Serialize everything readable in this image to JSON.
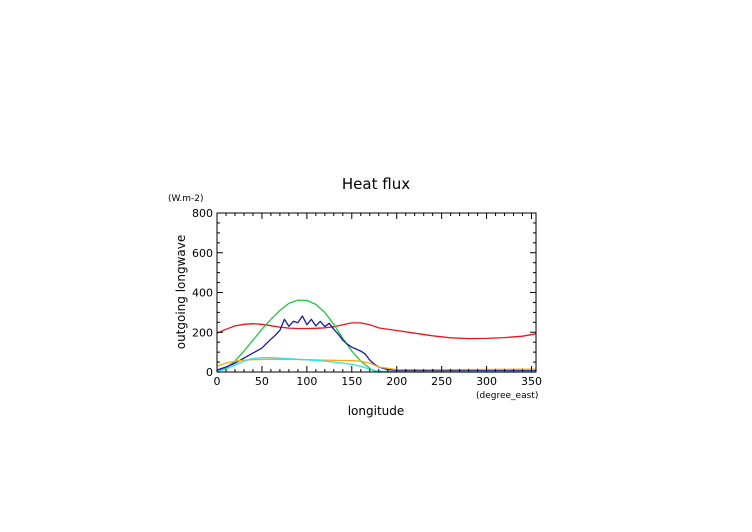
{
  "chart_data": {
    "type": "line",
    "title": "Heat flux",
    "ylabel": "outgoing longwave",
    "yunit": "(W.m-2)",
    "xlabel": "longitude",
    "xunit": "(degree_east)",
    "xlim": [
      0,
      355
    ],
    "ylim": [
      0,
      800
    ],
    "xticks": [
      0,
      50,
      100,
      150,
      200,
      250,
      300,
      350
    ],
    "yticks": [
      0,
      200,
      400,
      600,
      800
    ],
    "grid": false,
    "legend": "none",
    "series": [
      {
        "color": "#e8141e",
        "x": [
          0,
          10,
          20,
          30,
          40,
          50,
          60,
          70,
          80,
          90,
          100,
          110,
          120,
          130,
          140,
          150,
          160,
          170,
          180,
          200,
          220,
          240,
          260,
          280,
          300,
          320,
          340,
          355
        ],
        "y": [
          195,
          215,
          232,
          240,
          243,
          240,
          233,
          226,
          221,
          219,
          219,
          220,
          222,
          228,
          238,
          247,
          247,
          238,
          222,
          209,
          195,
          182,
          172,
          168,
          169,
          173,
          180,
          192
        ]
      },
      {
        "color": "#22c440",
        "x": [
          0,
          10,
          20,
          30,
          40,
          50,
          60,
          70,
          80,
          90,
          100,
          110,
          120,
          130,
          140,
          150,
          160,
          170,
          175,
          180,
          200,
          250,
          300,
          355
        ],
        "y": [
          5,
          20,
          55,
          105,
          160,
          215,
          265,
          310,
          345,
          362,
          360,
          340,
          300,
          240,
          170,
          105,
          55,
          18,
          5,
          0,
          0,
          0,
          0,
          0
        ]
      },
      {
        "color": "#1a1a9c",
        "x": [
          0,
          10,
          20,
          30,
          40,
          50,
          60,
          65,
          70,
          75,
          80,
          85,
          90,
          95,
          100,
          105,
          110,
          115,
          120,
          125,
          130,
          135,
          140,
          145,
          150,
          155,
          160,
          165,
          170,
          175,
          180,
          190,
          200,
          250,
          300,
          355
        ],
        "y": [
          10,
          25,
          45,
          70,
          95,
          120,
          165,
          185,
          210,
          265,
          230,
          255,
          248,
          282,
          238,
          265,
          232,
          255,
          228,
          245,
          215,
          190,
          160,
          140,
          125,
          115,
          105,
          90,
          60,
          40,
          25,
          12,
          8,
          6,
          6,
          6
        ]
      },
      {
        "color": "#f4a81c",
        "x": [
          0,
          10,
          20,
          30,
          40,
          50,
          60,
          70,
          80,
          90,
          100,
          110,
          120,
          130,
          140,
          150,
          160,
          170,
          180,
          200,
          250,
          300,
          355
        ],
        "y": [
          30,
          45,
          55,
          60,
          62,
          63,
          64,
          64,
          64,
          63,
          62,
          61,
          60,
          59,
          58,
          57,
          55,
          45,
          25,
          12,
          12,
          13,
          14
        ]
      },
      {
        "color": "#30e0e8",
        "x": [
          0,
          10,
          20,
          30,
          40,
          50,
          60,
          70,
          80,
          90,
          100,
          110,
          120,
          130,
          140,
          150,
          160,
          170,
          180,
          200,
          250,
          300,
          355
        ],
        "y": [
          2,
          15,
          35,
          55,
          68,
          72,
          72,
          70,
          67,
          64,
          61,
          58,
          55,
          50,
          45,
          38,
          28,
          14,
          4,
          2,
          2,
          2,
          2
        ]
      }
    ]
  }
}
